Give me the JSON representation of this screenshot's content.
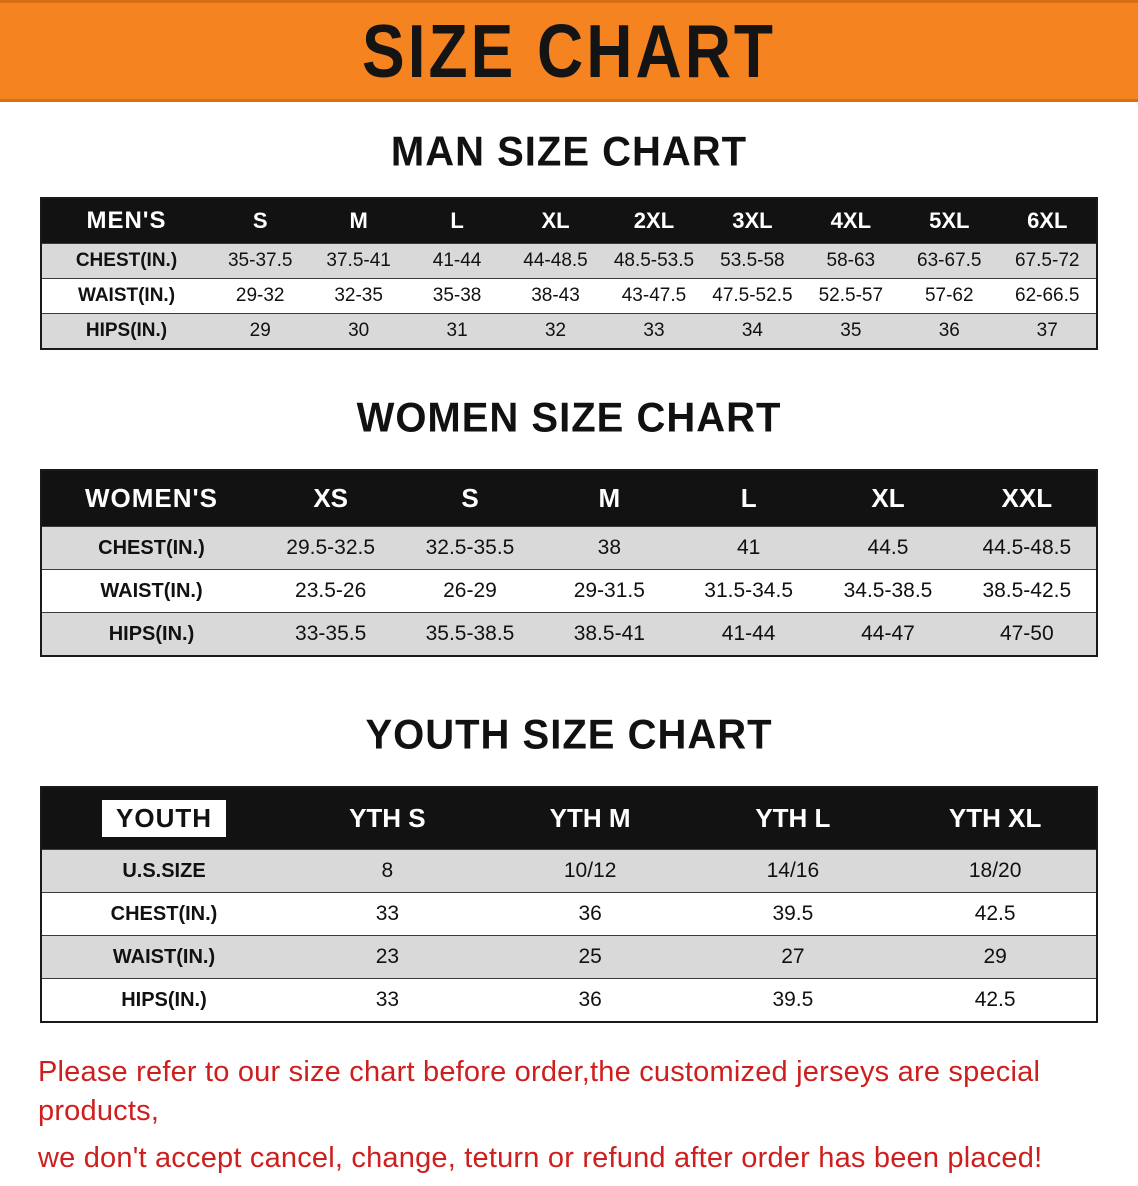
{
  "banner": {
    "title": "SIZE CHART",
    "background": "#F5831F"
  },
  "colors": {
    "banner_orange": "#F5831F",
    "header_black": "#121212",
    "stripe_gray": "#D9D9D9",
    "note_red": "#CE1F1F"
  },
  "sections": {
    "men": {
      "heading": "MAN SIZE CHART",
      "table": {
        "header": [
          "MEN'S",
          "S",
          "M",
          "L",
          "XL",
          "2XL",
          "3XL",
          "4XL",
          "5XL",
          "6XL"
        ],
        "rows": [
          [
            "CHEST(IN.)",
            "35-37.5",
            "37.5-41",
            "41-44",
            "44-48.5",
            "48.5-53.5",
            "53.5-58",
            "58-63",
            "63-67.5",
            "67.5-72"
          ],
          [
            "WAIST(IN.)",
            "29-32",
            "32-35",
            "35-38",
            "38-43",
            "43-47.5",
            "47.5-52.5",
            "52.5-57",
            "57-62",
            "62-66.5"
          ],
          [
            "HIPS(IN.)",
            "29",
            "30",
            "31",
            "32",
            "33",
            "34",
            "35",
            "36",
            "37"
          ]
        ]
      }
    },
    "women": {
      "heading": "WOMEN SIZE CHART",
      "table": {
        "header": [
          "WOMEN'S",
          "XS",
          "S",
          "M",
          "L",
          "XL",
          "XXL"
        ],
        "rows": [
          [
            "CHEST(IN.)",
            "29.5-32.5",
            "32.5-35.5",
            "38",
            "41",
            "44.5",
            "44.5-48.5"
          ],
          [
            "WAIST(IN.)",
            "23.5-26",
            "26-29",
            "29-31.5",
            "31.5-34.5",
            "34.5-38.5",
            "38.5-42.5"
          ],
          [
            "HIPS(IN.)",
            "33-35.5",
            "35.5-38.5",
            "38.5-41",
            "41-44",
            "44-47",
            "47-50"
          ]
        ]
      }
    },
    "youth": {
      "heading": "YOUTH SIZE CHART",
      "table": {
        "header": [
          "YOUTH",
          "YTH S",
          "YTH M",
          "YTH L",
          "YTH XL"
        ],
        "rows": [
          [
            "U.S.SIZE",
            "8",
            "10/12",
            "14/16",
            "18/20"
          ],
          [
            "CHEST(IN.)",
            "33",
            "36",
            "39.5",
            "42.5"
          ],
          [
            "WAIST(IN.)",
            "23",
            "25",
            "27",
            "29"
          ],
          [
            "HIPS(IN.)",
            "33",
            "36",
            "39.5",
            "42.5"
          ]
        ]
      }
    }
  },
  "footer": {
    "line1": "Please refer to our size chart before order,the customized jerseys are special products,",
    "line2": "we don't accept cancel, change, teturn or refund after order has been placed!"
  }
}
